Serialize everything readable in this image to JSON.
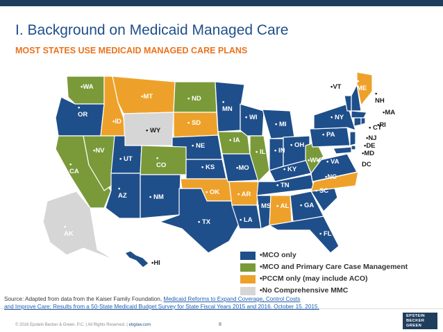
{
  "header": {
    "title": "I. Background on Medicaid Managed Care",
    "subtitle": "MOST STATES USE MEDICAID MANAGED CARE PLANS"
  },
  "colors": {
    "mco_only": "#1f4f8a",
    "mco_pccm": "#7a9a3a",
    "pccm_only": "#eea12a",
    "none": "#d6d6d6",
    "title": "#1f4f8a",
    "subtitle": "#e9731e"
  },
  "states": {
    "WA": "•WA",
    "OR": "•\nOR",
    "ID": "•ID",
    "MT": "•MT",
    "WY": "• WY",
    "ND": "• ND",
    "SD": "• SD",
    "NE": "• NE",
    "CA": "•\nCA",
    "NV": "•NV",
    "UT": "• UT",
    "CO": "•\nCO",
    "AZ": "•\nAZ",
    "NM": "• NM",
    "KS": "• KS",
    "OK": "• OK",
    "TX": "• TX",
    "MN": "•\nMN",
    "IA": "• IA",
    "MO": "•MO",
    "AR": "• AR",
    "LA": "• LA",
    "WI": "• WI",
    "IL": "• IL",
    "MS": "• MS",
    "MI": "• MI",
    "IN": "• IN",
    "KY": "• KY",
    "TN": "• TN",
    "AL": "• AL",
    "OH": "• OH",
    "WV": "•WV",
    "GA": "• GA",
    "FL": "• FL",
    "SC": "• SC",
    "NC": "•NC",
    "VA": "• VA",
    "PA": "• PA",
    "NY": "• NY",
    "VT": "•VT",
    "ME": "•\nME",
    "NH": "•\nNH",
    "MA": "•MA",
    "CT": "• CT",
    "RI": "•RI",
    "NJ": "•NJ",
    "DE": "•DE",
    "MD": "•MD",
    "DC": "DC",
    "AK": "•\nAK",
    "HI": "•HI"
  },
  "legend": [
    {
      "label": "•MCO only",
      "color": "#1f4f8a"
    },
    {
      "label": "•MCO and Primary Care Case Management",
      "color": "#7a9a3a"
    },
    {
      "label": "•PCCM only (may include ACO)",
      "color": "#eea12a"
    },
    {
      "label": "•No Comprehensive MMC",
      "color": "#d6d6d6"
    }
  ],
  "source": {
    "prefix": "Source: Adapted from data from the Kaiser Family Foundation, ",
    "link1": "Medicaid Reforms to Expand Coverage, Control Costs",
    "link2": "and Improve Care: Results from a 50-State Medicaid Budget Survey for State Fiscal Years 2015 and 2016, October 15, 2015."
  },
  "footer": {
    "copyright": "© 2016 Epstein Becker & Green, P.C. | All Rights Reserved. |",
    "website": "ebglaw.com",
    "page_number": "8",
    "logo_text": [
      "EPSTEIN",
      "BECKER",
      "GREEN"
    ]
  }
}
